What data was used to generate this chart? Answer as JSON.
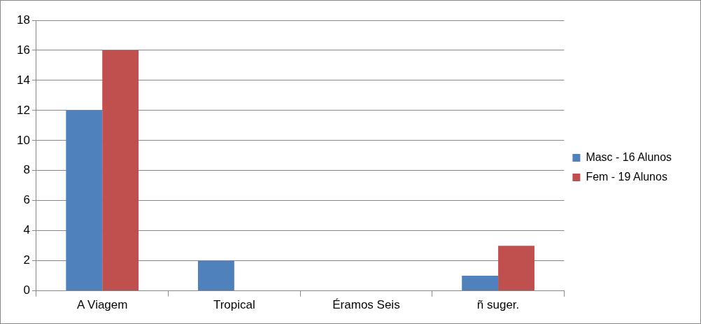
{
  "chart_data": {
    "type": "bar",
    "categories": [
      "A Viagem",
      "Tropical",
      "Éramos Seis",
      "ñ suger."
    ],
    "series": [
      {
        "name": "Masc - 16 Alunos",
        "color": "#4f81bd",
        "values": [
          12,
          2,
          0,
          1
        ]
      },
      {
        "name": "Fem - 19 Alunos",
        "color": "#c0504d",
        "values": [
          16,
          0,
          0,
          3
        ]
      }
    ],
    "ylim": [
      0,
      18
    ],
    "yticks": [
      0,
      2,
      4,
      6,
      8,
      10,
      12,
      14,
      16,
      18
    ],
    "grid": "y",
    "legend": "right"
  }
}
